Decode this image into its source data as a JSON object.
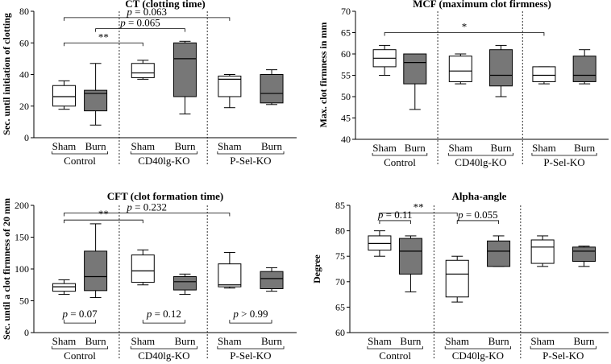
{
  "chart_data": [
    {
      "type": "boxplot",
      "title": "CT (clotting time)",
      "ylabel": "Sec. until initiation of clotting",
      "ylim": [
        0,
        80
      ],
      "yticks": [
        0,
        20,
        40,
        60,
        80
      ],
      "categories": [
        "Sham",
        "Burn",
        "Sham",
        "Burn",
        "Sham",
        "Burn"
      ],
      "groups": [
        "Control",
        "CD40lg-KO",
        "P-Sel-KO"
      ],
      "boxes": [
        {
          "min": 18,
          "q1": 20,
          "median": 26,
          "q3": 33,
          "max": 36,
          "fill": "#ffffff"
        },
        {
          "min": 8,
          "q1": 17,
          "median": 28,
          "q3": 30,
          "max": 47,
          "fill": "#777777"
        },
        {
          "min": 37,
          "q1": 38,
          "median": 41,
          "q3": 47,
          "max": 49,
          "fill": "#ffffff"
        },
        {
          "min": 15,
          "q1": 26,
          "median": 50,
          "q3": 60,
          "max": 61,
          "fill": "#777777"
        },
        {
          "min": 19,
          "q1": 26,
          "median": 37,
          "q3": 39,
          "max": 40,
          "fill": "#ffffff"
        },
        {
          "min": 21,
          "q1": 22,
          "median": 28,
          "q3": 40,
          "max": 43,
          "fill": "#777777"
        }
      ],
      "annotations": [
        {
          "from": 0,
          "to": 4,
          "y": 76,
          "label": "p = 0.063"
        },
        {
          "from": 0,
          "to": 2,
          "y": 60,
          "label": "**"
        },
        {
          "from": 1,
          "to": 3,
          "y": 69,
          "label": "p = 0.065"
        }
      ]
    },
    {
      "type": "boxplot",
      "title": "MCF (maximum clot firmness)",
      "ylabel": "Max. clot firmness in mm",
      "ylim": [
        40,
        70
      ],
      "yticks": [
        40,
        45,
        50,
        55,
        60,
        65,
        70
      ],
      "categories": [
        "Sham",
        "Burn",
        "Sham",
        "Burn",
        "Sham",
        "Burn"
      ],
      "groups": [
        "Control",
        "CD40lg-KO",
        "P-Sel-KO"
      ],
      "boxes": [
        {
          "min": 55,
          "q1": 57,
          "median": 59,
          "q3": 61,
          "max": 62,
          "fill": "#ffffff"
        },
        {
          "min": 47,
          "q1": 53,
          "median": 58,
          "q3": 60,
          "max": 60,
          "fill": "#777777"
        },
        {
          "min": 53,
          "q1": 53.5,
          "median": 56,
          "q3": 59.5,
          "max": 60,
          "fill": "#ffffff"
        },
        {
          "min": 50,
          "q1": 52.5,
          "median": 55,
          "q3": 61,
          "max": 62,
          "fill": "#777777"
        },
        {
          "min": 53,
          "q1": 53.5,
          "median": 55,
          "q3": 57,
          "max": 57,
          "fill": "#ffffff"
        },
        {
          "min": 53,
          "q1": 53.5,
          "median": 55,
          "q3": 59.5,
          "max": 61,
          "fill": "#777777"
        }
      ],
      "annotations": [
        {
          "from": 0,
          "to": 4,
          "y": 65,
          "label": "*"
        }
      ]
    },
    {
      "type": "boxplot",
      "title": "CFT (clot formation time)",
      "ylabel": "Sec. until a clot firmness of 20 mm",
      "ylim": [
        0,
        200
      ],
      "yticks": [
        0,
        50,
        100,
        150,
        200
      ],
      "categories": [
        "Sham",
        "Burn",
        "Sham",
        "Burn",
        "Sham",
        "Burn"
      ],
      "groups": [
        "Control",
        "CD40lg-KO",
        "P-Sel-KO"
      ],
      "boxes": [
        {
          "min": 60,
          "q1": 65,
          "median": 72,
          "q3": 77,
          "max": 83,
          "fill": "#ffffff"
        },
        {
          "min": 55,
          "q1": 66,
          "median": 88,
          "q3": 128,
          "max": 171,
          "fill": "#777777"
        },
        {
          "min": 75,
          "q1": 79,
          "median": 97,
          "q3": 122,
          "max": 130,
          "fill": "#ffffff"
        },
        {
          "min": 60,
          "q1": 67,
          "median": 80,
          "q3": 88,
          "max": 92,
          "fill": "#777777"
        },
        {
          "min": 70,
          "q1": 72,
          "median": 75,
          "q3": 108,
          "max": 126,
          "fill": "#ffffff"
        },
        {
          "min": 65,
          "q1": 69,
          "median": 85,
          "q3": 96,
          "max": 102,
          "fill": "#777777"
        }
      ],
      "annotations": [
        {
          "from": 0,
          "to": 4,
          "y": 188,
          "label": "p = 0.232"
        },
        {
          "from": 0,
          "to": 2,
          "y": 177,
          "label": "**"
        },
        {
          "from": 0,
          "to": 1,
          "y": 15,
          "label": "p = 0.07",
          "below": true
        },
        {
          "from": 2,
          "to": 3,
          "y": 15,
          "label": "p = 0.12",
          "below": true
        },
        {
          "from": 4,
          "to": 5,
          "y": 15,
          "label": "p > 0.99",
          "below": true
        }
      ]
    },
    {
      "type": "boxplot",
      "title": "Alpha-angle",
      "ylabel": "Degree",
      "ylim": [
        60,
        85
      ],
      "yticks": [
        60,
        65,
        70,
        75,
        80,
        85
      ],
      "categories": [
        "Sham",
        "Burn",
        "Sham",
        "Burn",
        "Sham",
        "Burn"
      ],
      "groups": [
        "Control",
        "CD40lg-KO",
        "P-Sel-KO"
      ],
      "boxes": [
        {
          "min": 75,
          "q1": 76.2,
          "median": 77.5,
          "q3": 79,
          "max": 80,
          "fill": "#ffffff"
        },
        {
          "min": 68,
          "q1": 71.5,
          "median": 76,
          "q3": 78.5,
          "max": 79,
          "fill": "#777777"
        },
        {
          "min": 66,
          "q1": 67,
          "median": 71.5,
          "q3": 74.2,
          "max": 75,
          "fill": "#ffffff"
        },
        {
          "min": 73,
          "q1": 73,
          "median": 76,
          "q3": 78,
          "max": 79,
          "fill": "#777777"
        },
        {
          "min": 73,
          "q1": 73.6,
          "median": 76.8,
          "q3": 78.2,
          "max": 79,
          "fill": "#ffffff"
        },
        {
          "min": 73,
          "q1": 74,
          "median": 76,
          "q3": 76.8,
          "max": 77,
          "fill": "#777777"
        }
      ],
      "annotations": [
        {
          "from": 0,
          "to": 2,
          "y": 83.5,
          "label": "**"
        },
        {
          "from": 0,
          "to": 1,
          "y": 82,
          "label": "p = 0.11"
        },
        {
          "from": 2,
          "to": 3,
          "y": 82,
          "label": "p = 0.055"
        }
      ]
    }
  ]
}
